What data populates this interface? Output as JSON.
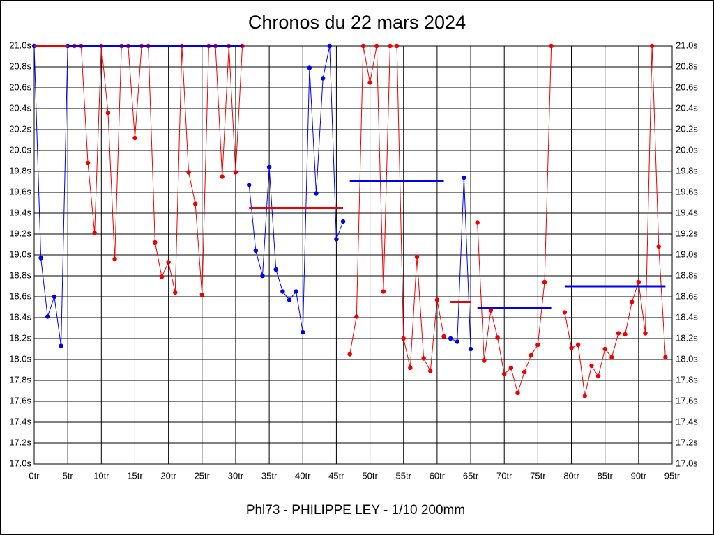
{
  "chart_data": {
    "type": "line",
    "title": "Chronos du 22 mars 2024",
    "footer": "Phl73 - PHILIPPE LEY - 1/10 200mm",
    "xlim": [
      0,
      95
    ],
    "xticks": [
      {
        "value": 0,
        "label": "0tr"
      },
      {
        "value": 5,
        "label": "5tr"
      },
      {
        "value": 10,
        "label": "10tr"
      },
      {
        "value": 15,
        "label": "15tr"
      },
      {
        "value": 20,
        "label": "20tr"
      },
      {
        "value": 25,
        "label": "25tr"
      },
      {
        "value": 30,
        "label": "30tr"
      },
      {
        "value": 35,
        "label": "35tr"
      },
      {
        "value": 40,
        "label": "40tr"
      },
      {
        "value": 45,
        "label": "45tr"
      },
      {
        "value": 50,
        "label": "50tr"
      },
      {
        "value": 55,
        "label": "55tr"
      },
      {
        "value": 60,
        "label": "60tr"
      },
      {
        "value": 65,
        "label": "65tr"
      },
      {
        "value": 70,
        "label": "70tr"
      },
      {
        "value": 75,
        "label": "75tr"
      },
      {
        "value": 80,
        "label": "80tr"
      },
      {
        "value": 85,
        "label": "85tr"
      },
      {
        "value": 90,
        "label": "90tr"
      },
      {
        "value": 95,
        "label": "95tr"
      }
    ],
    "ylim": [
      17.0,
      21.0
    ],
    "yticks": [
      {
        "value": 17.0,
        "label": "17.0s"
      },
      {
        "value": 17.2,
        "label": "17.2s"
      },
      {
        "value": 17.4,
        "label": "17.4s"
      },
      {
        "value": 17.6,
        "label": "17.6s"
      },
      {
        "value": 17.8,
        "label": "17.8s"
      },
      {
        "value": 18.0,
        "label": "18.0s"
      },
      {
        "value": 18.2,
        "label": "18.2s"
      },
      {
        "value": 18.4,
        "label": "18.4s"
      },
      {
        "value": 18.6,
        "label": "18.6s"
      },
      {
        "value": 18.8,
        "label": "18.8s"
      },
      {
        "value": 19.0,
        "label": "19.0s"
      },
      {
        "value": 19.2,
        "label": "19.2s"
      },
      {
        "value": 19.4,
        "label": "19.4s"
      },
      {
        "value": 19.6,
        "label": "19.6s"
      },
      {
        "value": 19.8,
        "label": "19.8s"
      },
      {
        "value": 20.0,
        "label": "20.0s"
      },
      {
        "value": 20.2,
        "label": "20.2s"
      },
      {
        "value": 20.4,
        "label": "20.4s"
      },
      {
        "value": 20.6,
        "label": "20.6s"
      },
      {
        "value": 20.8,
        "label": "20.8s"
      },
      {
        "value": 21.0,
        "label": "21.0s"
      }
    ],
    "grid": true,
    "series": [
      {
        "color": "#0000ee",
        "x": [
          0,
          1,
          2,
          3,
          4,
          5
        ],
        "values": [
          21.0,
          18.97,
          18.41,
          18.6,
          18.13,
          21.0
        ]
      },
      {
        "color": "#ee0000",
        "x": [
          6,
          7,
          8,
          9,
          10,
          11,
          12,
          13,
          14,
          15,
          16,
          17,
          18,
          19,
          20,
          21,
          22,
          23,
          24,
          25,
          26,
          27,
          28,
          29,
          30,
          31
        ],
        "values": [
          21.0,
          21.0,
          19.88,
          19.21,
          21.0,
          20.36,
          18.96,
          21.0,
          21.0,
          20.12,
          21.0,
          21.0,
          19.12,
          18.79,
          18.93,
          18.64,
          21.0,
          19.79,
          19.49,
          18.62,
          21.0,
          21.0,
          19.75,
          21.0,
          19.79,
          21.0
        ]
      },
      {
        "color": "#0000ee",
        "x": [
          32,
          33,
          34,
          35,
          36,
          37,
          38,
          39,
          40,
          41,
          42,
          43,
          44,
          45,
          46
        ],
        "values": [
          19.67,
          19.04,
          18.8,
          19.84,
          18.86,
          18.65,
          18.57,
          18.65,
          18.26,
          20.79,
          19.59,
          20.69,
          21.0,
          19.15,
          19.32
        ]
      },
      {
        "color": "#ee0000",
        "x": [
          47,
          48,
          49,
          50,
          51,
          52,
          53,
          54,
          55,
          56,
          57,
          58,
          59,
          60,
          61
        ],
        "values": [
          18.05,
          18.41,
          21.0,
          20.65,
          21.0,
          18.65,
          21.0,
          21.0,
          18.2,
          17.92,
          18.98,
          18.01,
          17.89,
          18.57,
          18.22
        ]
      },
      {
        "color": "#0000ee",
        "x": [
          62,
          63,
          64,
          65
        ],
        "values": [
          18.2,
          18.17,
          19.74,
          18.1
        ]
      },
      {
        "color": "#ee0000",
        "x": [
          66,
          67,
          68,
          69,
          70,
          71,
          72,
          73,
          74,
          75,
          76,
          77,
          78,
          79,
          80,
          81,
          82,
          83,
          84,
          85,
          86,
          87,
          88,
          89,
          90,
          91,
          92,
          93,
          94
        ],
        "values": [
          19.31,
          17.99,
          18.47,
          18.21,
          17.86,
          17.92,
          17.68,
          17.88,
          18.04,
          18.14,
          18.74,
          21.0,
          null,
          18.45,
          18.11,
          18.14,
          17.65,
          17.94,
          17.84,
          18.1,
          18.02,
          18.25,
          18.24,
          18.55,
          18.74,
          18.25,
          21.0,
          19.08,
          18.02
        ]
      }
    ],
    "averages": [
      {
        "color": "#ee0000",
        "x": [
          0,
          5
        ],
        "value": 21.0
      },
      {
        "color": "#0000ee",
        "x": [
          5,
          31
        ],
        "value": 21.0
      },
      {
        "color": "#ee0000",
        "x": [
          32,
          46
        ],
        "value": 19.45
      },
      {
        "color": "#0000ee",
        "x": [
          47,
          61
        ],
        "value": 19.71
      },
      {
        "color": "#ee0000",
        "x": [
          62,
          65
        ],
        "value": 18.55
      },
      {
        "color": "#0000ee",
        "x": [
          66,
          77
        ],
        "value": 18.49
      },
      {
        "color": "#0000ee",
        "x": [
          79,
          94
        ],
        "value": 18.7
      }
    ]
  }
}
